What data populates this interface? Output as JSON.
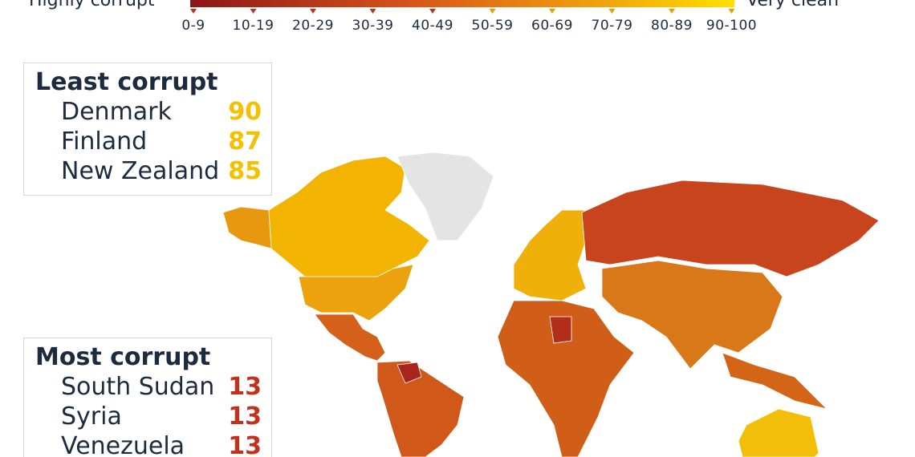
{
  "legend": {
    "low_label": "Highly corrupt",
    "high_label": "Very clean",
    "ranges": [
      "0-9",
      "10-19",
      "20-29",
      "30-39",
      "40-49",
      "50-59",
      "60-69",
      "70-79",
      "80-89",
      "90-100"
    ]
  },
  "least_corrupt": {
    "title": "Least corrupt",
    "items": [
      {
        "country": "Denmark",
        "score": "90"
      },
      {
        "country": "Finland",
        "score": "87"
      },
      {
        "country": "New Zealand",
        "score": "85"
      }
    ]
  },
  "most_corrupt": {
    "title": "Most corrupt",
    "items": [
      {
        "country": "South Sudan",
        "score": "13"
      },
      {
        "country": "Syria",
        "score": "13"
      },
      {
        "country": "Venezuela",
        "score": "13"
      }
    ]
  }
}
